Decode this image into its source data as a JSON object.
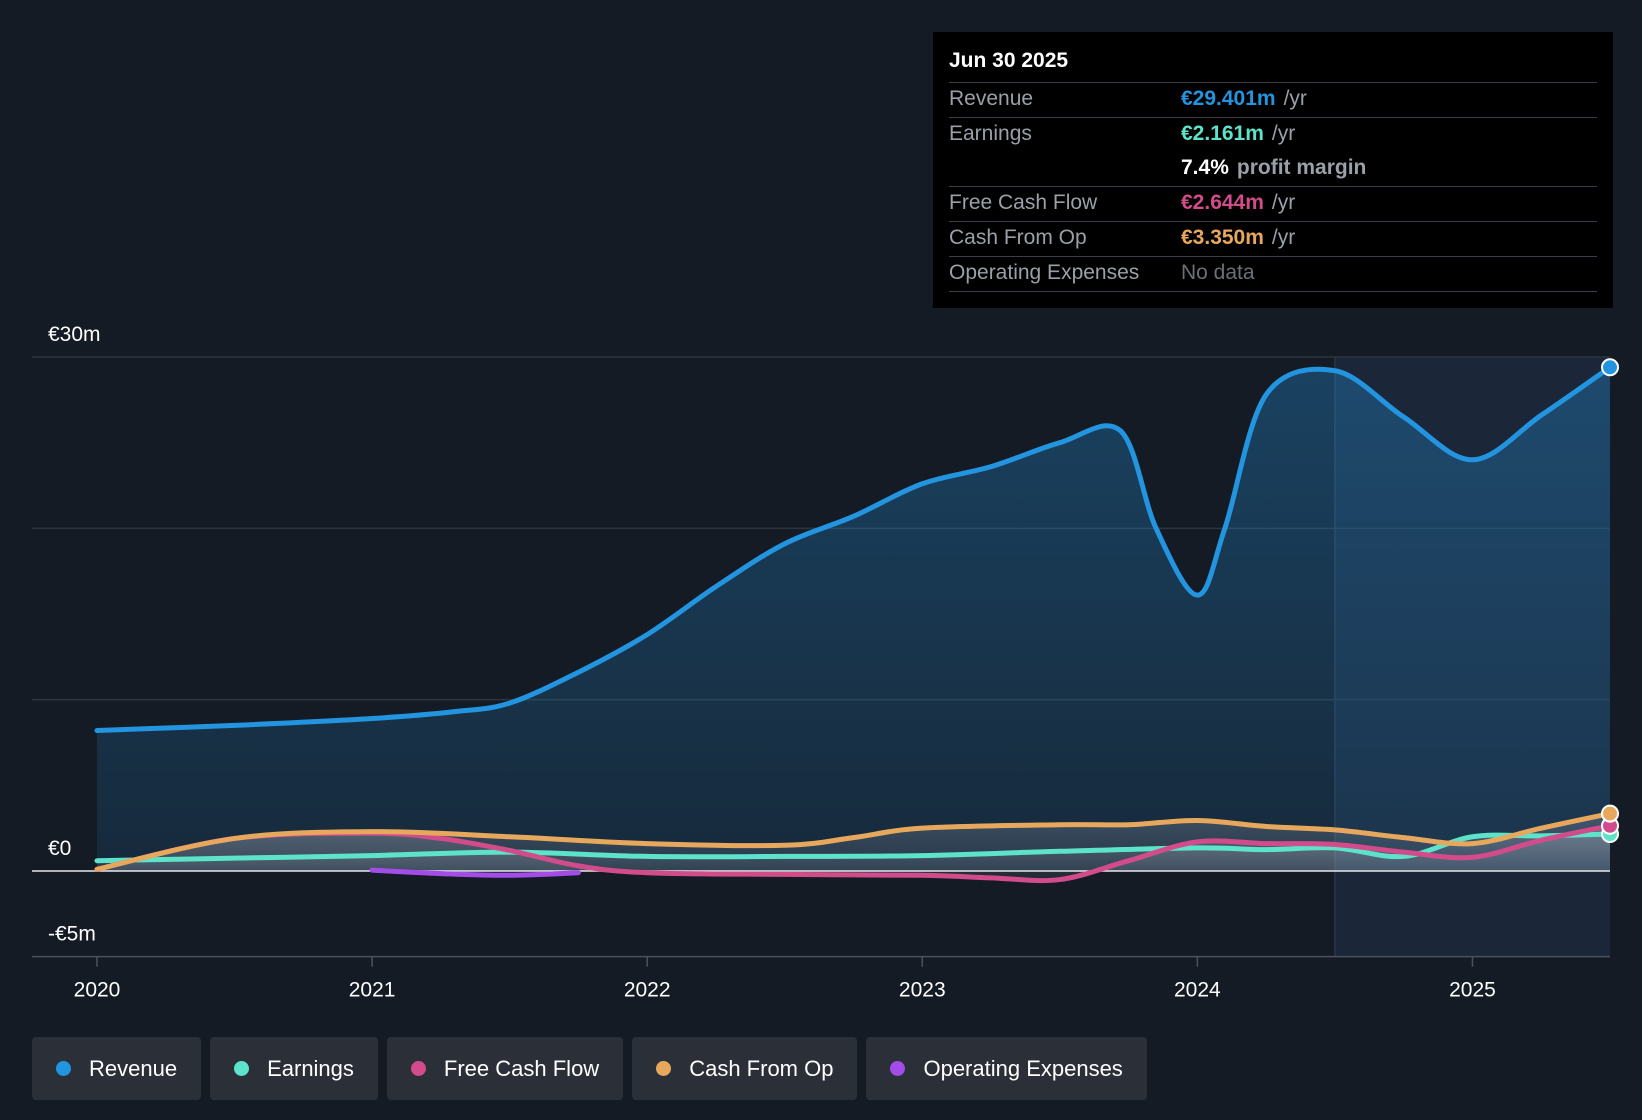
{
  "chart_data": {
    "type": "line",
    "currency": "€",
    "y_axis": {
      "min": -5,
      "max": 30,
      "gridlines": [
        30,
        20,
        10,
        0,
        -5
      ],
      "tick_labels": [
        {
          "value": 30,
          "label": "€30m"
        },
        {
          "value": 0,
          "label": "€0"
        },
        {
          "value": -5,
          "label": "-€5m"
        }
      ]
    },
    "x_axis": {
      "min": 2020.0,
      "max": 2025.5,
      "ticks": [
        {
          "value": 2020,
          "label": "2020"
        },
        {
          "value": 2021,
          "label": "2021"
        },
        {
          "value": 2022,
          "label": "2022"
        },
        {
          "value": 2023,
          "label": "2023"
        },
        {
          "value": 2024,
          "label": "2024"
        },
        {
          "value": 2025,
          "label": "2025"
        }
      ]
    },
    "forecast_start": 2024.5,
    "series": [
      {
        "name": "Revenue",
        "color": "#2394df",
        "filled": true,
        "points": [
          [
            2020,
            8.2
          ],
          [
            2020.5,
            8.5
          ],
          [
            2021,
            8.9
          ],
          [
            2021.3,
            9.3
          ],
          [
            2021.5,
            9.8
          ],
          [
            2021.75,
            11.6
          ],
          [
            2022,
            13.8
          ],
          [
            2022.25,
            16.6
          ],
          [
            2022.5,
            19.1
          ],
          [
            2022.75,
            20.7
          ],
          [
            2023,
            22.6
          ],
          [
            2023.25,
            23.6
          ],
          [
            2023.5,
            25
          ],
          [
            2023.72,
            25.7
          ],
          [
            2023.85,
            20
          ],
          [
            2024,
            16.1
          ],
          [
            2024.1,
            20
          ],
          [
            2024.25,
            27.8
          ],
          [
            2024.5,
            29.2
          ],
          [
            2024.75,
            26.5
          ],
          [
            2025,
            24
          ],
          [
            2025.25,
            26.6
          ],
          [
            2025.5,
            29.4
          ]
        ]
      },
      {
        "name": "Earnings",
        "color": "#5ce3c9",
        "filled": true,
        "points": [
          [
            2020,
            0.6
          ],
          [
            2020.5,
            0.75
          ],
          [
            2021,
            0.9
          ],
          [
            2021.5,
            1.1
          ],
          [
            2022,
            0.85
          ],
          [
            2022.5,
            0.85
          ],
          [
            2023,
            0.9
          ],
          [
            2023.5,
            1.15
          ],
          [
            2024,
            1.35
          ],
          [
            2024.25,
            1.25
          ],
          [
            2024.5,
            1.35
          ],
          [
            2024.75,
            0.85
          ],
          [
            2025,
            2
          ],
          [
            2025.25,
            2.05
          ],
          [
            2025.5,
            2.16
          ]
        ]
      },
      {
        "name": "Free Cash Flow",
        "color": "#d24c8b",
        "filled": true,
        "points": [
          [
            2020,
            0.1
          ],
          [
            2020.5,
            1.9
          ],
          [
            2021,
            2.2
          ],
          [
            2021.25,
            1.9
          ],
          [
            2021.5,
            1.2
          ],
          [
            2021.75,
            0.3
          ],
          [
            2022,
            -0.1
          ],
          [
            2022.5,
            -0.2
          ],
          [
            2023,
            -0.25
          ],
          [
            2023.25,
            -0.4
          ],
          [
            2023.5,
            -0.5
          ],
          [
            2023.75,
            0.6
          ],
          [
            2024,
            1.7
          ],
          [
            2024.25,
            1.6
          ],
          [
            2024.5,
            1.55
          ],
          [
            2024.75,
            1.1
          ],
          [
            2025,
            0.8
          ],
          [
            2025.25,
            1.8
          ],
          [
            2025.5,
            2.64
          ]
        ]
      },
      {
        "name": "Cash From Op",
        "color": "#e7a85d",
        "filled": true,
        "points": [
          [
            2020,
            0.1
          ],
          [
            2020.5,
            1.9
          ],
          [
            2021,
            2.3
          ],
          [
            2021.5,
            2.0
          ],
          [
            2022,
            1.6
          ],
          [
            2022.5,
            1.5
          ],
          [
            2022.75,
            1.95
          ],
          [
            2023,
            2.5
          ],
          [
            2023.5,
            2.7
          ],
          [
            2023.75,
            2.7
          ],
          [
            2024,
            2.95
          ],
          [
            2024.25,
            2.6
          ],
          [
            2024.5,
            2.4
          ],
          [
            2024.75,
            1.95
          ],
          [
            2025,
            1.6
          ],
          [
            2025.25,
            2.5
          ],
          [
            2025.5,
            3.35
          ]
        ]
      },
      {
        "name": "Operating Expenses",
        "color": "#a34ce7",
        "filled": false,
        "points": [
          [
            2021,
            0.05
          ],
          [
            2021.25,
            -0.15
          ],
          [
            2021.5,
            -0.25
          ],
          [
            2021.75,
            -0.1
          ]
        ]
      }
    ]
  },
  "tooltip": {
    "date": "Jun 30 2025",
    "rows": {
      "revenue": {
        "label": "Revenue",
        "value": "€29.401m",
        "unit": "/yr",
        "color": "#2394df"
      },
      "earnings": {
        "label": "Earnings",
        "value": "€2.161m",
        "unit": "/yr",
        "color": "#5ce3c9"
      },
      "margin": {
        "value": "7.4%",
        "text": "profit margin"
      },
      "fcf": {
        "label": "Free Cash Flow",
        "value": "€2.644m",
        "unit": "/yr",
        "color": "#d24c8b"
      },
      "cfo": {
        "label": "Cash From Op",
        "value": "€3.350m",
        "unit": "/yr",
        "color": "#e7a85d"
      },
      "opex": {
        "label": "Operating Expenses",
        "value": "No data"
      }
    }
  },
  "legend": [
    {
      "label": "Revenue",
      "color": "#2394df"
    },
    {
      "label": "Earnings",
      "color": "#5ce3c9"
    },
    {
      "label": "Free Cash Flow",
      "color": "#d24c8b"
    },
    {
      "label": "Cash From Op",
      "color": "#e7a85d"
    },
    {
      "label": "Operating Expenses",
      "color": "#a34ce7"
    }
  ]
}
